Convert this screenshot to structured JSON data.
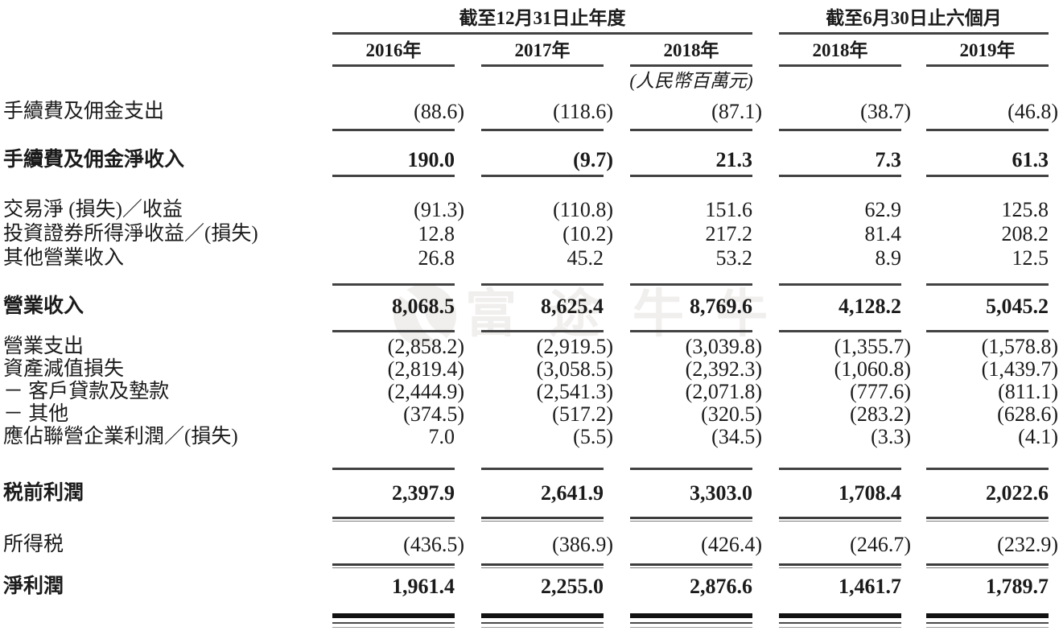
{
  "header": {
    "group1": {
      "title": "截至12月31日止年度",
      "years": [
        "2016年",
        "2017年",
        "2018年"
      ]
    },
    "group2": {
      "title": "截至6月30日止六個月",
      "years": [
        "2018年",
        "2019年"
      ]
    },
    "unit_note": "(人民幣百萬元)"
  },
  "watermark": {
    "text": "富途牛牛",
    "color": "#f1efed"
  },
  "rows": [
    {
      "label": "手續費及佣金支出",
      "bold": false,
      "values": [
        "(88.6)",
        "(118.6)",
        "(87.1)",
        "(38.7)",
        "(46.8)"
      ]
    },
    {
      "label": "手續費及佣金淨收入",
      "bold": true,
      "values": [
        "190.0",
        "(9.7)",
        "21.3",
        "7.3",
        "61.3"
      ]
    },
    {
      "label": "交易淨 (損失)／收益",
      "bold": false,
      "values": [
        "(91.3)",
        "(110.8)",
        "151.6",
        "62.9",
        "125.8"
      ]
    },
    {
      "label": "投資證券所得淨收益／(損失)",
      "bold": false,
      "values": [
        "12.8",
        "(10.2)",
        "217.2",
        "81.4",
        "208.2"
      ]
    },
    {
      "label": "其他營業收入",
      "bold": false,
      "values": [
        "26.8",
        "45.2",
        "53.2",
        "8.9",
        "12.5"
      ]
    },
    {
      "label": "營業收入",
      "bold": true,
      "values": [
        "8,068.5",
        "8,625.4",
        "8,769.6",
        "4,128.2",
        "5,045.2"
      ]
    },
    {
      "label": "營業支出",
      "bold": false,
      "values": [
        "(2,858.2)",
        "(2,919.5)",
        "(3,039.8)",
        "(1,355.7)",
        "(1,578.8)"
      ]
    },
    {
      "label": "資產減值損失",
      "bold": false,
      "values": [
        "(2,819.4)",
        "(3,058.5)",
        "(2,392.3)",
        "(1,060.8)",
        "(1,439.7)"
      ]
    },
    {
      "label": "－ 客戶貸款及墊款",
      "bold": false,
      "values": [
        "(2,444.9)",
        "(2,541.3)",
        "(2,071.8)",
        "(777.6)",
        "(811.1)"
      ]
    },
    {
      "label": "－ 其他",
      "bold": false,
      "values": [
        "(374.5)",
        "(517.2)",
        "(320.5)",
        "(283.2)",
        "(628.6)"
      ]
    },
    {
      "label": "應佔聯營企業利潤／(損失)",
      "bold": false,
      "values": [
        "7.0",
        "(5.5)",
        "(34.5)",
        "(3.3)",
        "(4.1)"
      ]
    },
    {
      "label": "税前利潤",
      "bold": true,
      "values": [
        "2,397.9",
        "2,641.9",
        "3,303.0",
        "1,708.4",
        "2,022.6"
      ]
    },
    {
      "label": "所得税",
      "bold": false,
      "values": [
        "(436.5)",
        "(386.9)",
        "(426.4)",
        "(246.7)",
        "(232.9)"
      ]
    },
    {
      "label": "淨利潤",
      "bold": true,
      "values": [
        "1,961.4",
        "2,255.0",
        "2,876.6",
        "1,461.7",
        "1,789.7"
      ]
    }
  ]
}
